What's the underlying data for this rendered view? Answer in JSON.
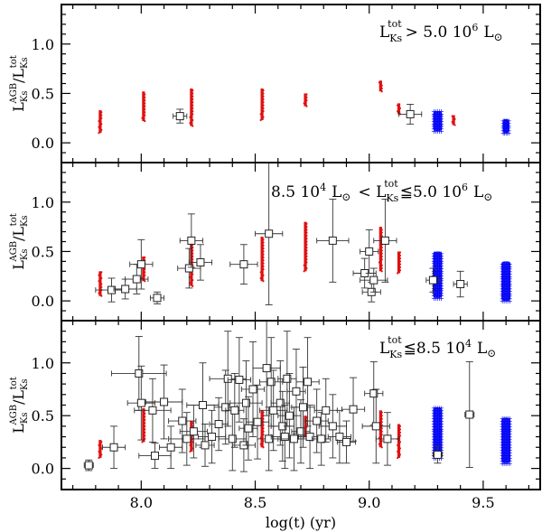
{
  "chart_data": {
    "type": "scatter",
    "xlabel": "log(t) (yr)",
    "xlim": [
      7.65,
      9.75
    ],
    "x_ticks": [
      8.0,
      8.5,
      9.0,
      9.5
    ],
    "x_tick_labels": [
      "8.0",
      "8.5",
      "9.0",
      "9.5"
    ],
    "panels": [
      {
        "id": "top",
        "label_prefix": "L",
        "label_sub": "K",
        "label_sub2": "s",
        "label_sup": "tot",
        "label_relation": "> 5.0  10",
        "label_exp": "6",
        "label_unit": "L",
        "label_unit_sym": "⊙",
        "ylabel": "L_Ks^AGB / L_Ks^tot",
        "ylim": [
          -0.2,
          1.4
        ],
        "y_ticks": [
          0.0,
          0.5,
          1.0
        ],
        "y_tick_labels": [
          "0.0",
          "0.5",
          "1.0"
        ],
        "observed": [
          {
            "x": 8.17,
            "y": 0.27,
            "xerr": 0.03,
            "yerr": 0.07
          },
          {
            "x": 9.18,
            "y": 0.29,
            "xerr": 0.05,
            "yerr": 0.1
          }
        ],
        "model_red": [
          {
            "x": 7.82,
            "y0": 0.1,
            "y1": 0.33
          },
          {
            "x": 8.01,
            "y0": 0.22,
            "y1": 0.52
          },
          {
            "x": 8.22,
            "y0": 0.17,
            "y1": 0.55
          },
          {
            "x": 8.53,
            "y0": 0.23,
            "y1": 0.55
          },
          {
            "x": 8.72,
            "y0": 0.37,
            "y1": 0.5
          },
          {
            "x": 9.05,
            "y0": 0.52,
            "y1": 0.63
          },
          {
            "x": 9.13,
            "y0": 0.29,
            "y1": 0.4
          },
          {
            "x": 9.37,
            "y0": 0.18,
            "y1": 0.28
          }
        ],
        "model_blue": [
          {
            "x": 9.3,
            "y0": 0.12,
            "y1": 0.32,
            "w": 0.04
          },
          {
            "x": 9.6,
            "y0": 0.1,
            "y1": 0.24,
            "w": 0.03
          }
        ]
      },
      {
        "id": "middle",
        "label_relation_left": "8.5  10",
        "label_exp_left": "4",
        "label_prefix": "L",
        "label_sub": "K",
        "label_sub2": "s",
        "label_sup": "tot",
        "label_relation": "< ",
        "label_rel2": "≦5.0  10",
        "label_exp": "6",
        "label_unit": "L",
        "label_unit_sym": "⊙",
        "ylabel": "L_Ks^AGB / L_Ks^tot",
        "ylim": [
          -0.2,
          1.4
        ],
        "y_ticks": [
          0.0,
          0.5,
          1.0
        ],
        "y_tick_labels": [
          "0.0",
          "0.5",
          "1.0"
        ],
        "observed": [
          {
            "x": 7.87,
            "y": 0.11,
            "xerr": 0.07,
            "yerr": 0.12
          },
          {
            "x": 7.93,
            "y": 0.12,
            "xerr": 0.05,
            "yerr": 0.1
          },
          {
            "x": 7.98,
            "y": 0.22,
            "xerr": 0.05,
            "yerr": 0.15
          },
          {
            "x": 8.0,
            "y": 0.37,
            "xerr": 0.05,
            "yerr": 0.25
          },
          {
            "x": 8.07,
            "y": 0.03,
            "xerr": 0.03,
            "yerr": 0.06
          },
          {
            "x": 8.21,
            "y": 0.33,
            "xerr": 0.05,
            "yerr": 0.2
          },
          {
            "x": 8.22,
            "y": 0.61,
            "xerr": 0.05,
            "yerr": 0.27
          },
          {
            "x": 8.26,
            "y": 0.39,
            "xerr": 0.05,
            "yerr": 0.18
          },
          {
            "x": 8.45,
            "y": 0.37,
            "xerr": 0.06,
            "yerr": 0.2
          },
          {
            "x": 8.56,
            "y": 0.68,
            "xerr": 0.06,
            "yerr": 0.72
          },
          {
            "x": 8.84,
            "y": 0.61,
            "xerr": 0.07,
            "yerr": 0.42
          },
          {
            "x": 8.98,
            "y": 0.28,
            "xerr": 0.05,
            "yerr": 0.15
          },
          {
            "x": 9.0,
            "y": 0.5,
            "xerr": 0.04,
            "yerr": 0.22
          },
          {
            "x": 9.01,
            "y": 0.09,
            "xerr": 0.04,
            "yerr": 0.1
          },
          {
            "x": 9.02,
            "y": 0.21,
            "xerr": 0.06,
            "yerr": 0.12
          },
          {
            "x": 9.07,
            "y": 0.61,
            "xerr": 0.05,
            "yerr": 0.42
          },
          {
            "x": 9.28,
            "y": 0.21,
            "xerr": 0.03,
            "yerr": 0.12
          },
          {
            "x": 9.4,
            "y": 0.17,
            "xerr": 0.03,
            "yerr": 0.13
          }
        ],
        "model_red": [
          {
            "x": 7.82,
            "y0": 0.05,
            "y1": 0.3
          },
          {
            "x": 8.01,
            "y0": 0.2,
            "y1": 0.45
          },
          {
            "x": 8.22,
            "y0": 0.15,
            "y1": 0.6
          },
          {
            "x": 8.53,
            "y0": 0.2,
            "y1": 0.65
          },
          {
            "x": 8.72,
            "y0": 0.3,
            "y1": 0.8
          },
          {
            "x": 9.05,
            "y0": 0.3,
            "y1": 0.75
          },
          {
            "x": 9.13,
            "y0": 0.28,
            "y1": 0.5
          }
        ],
        "model_blue": [
          {
            "x": 9.3,
            "y0": 0.03,
            "y1": 0.5,
            "w": 0.04
          },
          {
            "x": 9.6,
            "y0": 0.0,
            "y1": 0.4,
            "w": 0.04
          }
        ]
      },
      {
        "id": "bottom",
        "label_prefix": "L",
        "label_sub": "K",
        "label_sub2": "s",
        "label_sup": "tot",
        "label_relation": "≦8.5  10",
        "label_exp": "4",
        "label_unit": "L",
        "label_unit_sym": "⊙",
        "ylabel": "L_Ks^AGB / L_Ks^tot",
        "ylim": [
          -0.2,
          1.4
        ],
        "y_ticks": [
          0.0,
          0.5,
          1.0
        ],
        "y_tick_labels": [
          "0.0",
          "0.5",
          "1.0"
        ],
        "observed": [
          {
            "x": 7.77,
            "y": 0.03,
            "xerr": 0.02,
            "yerr": 0.05
          },
          {
            "x": 7.88,
            "y": 0.2,
            "xerr": 0.05,
            "yerr": 0.2
          },
          {
            "x": 7.99,
            "y": 0.9,
            "xerr": 0.12,
            "yerr": 0.35
          },
          {
            "x": 8.0,
            "y": 0.62,
            "xerr": 0.06,
            "yerr": 0.35
          },
          {
            "x": 8.05,
            "y": 0.55,
            "xerr": 0.08,
            "yerr": 0.3
          },
          {
            "x": 8.06,
            "y": 0.12,
            "xerr": 0.07,
            "yerr": 0.12
          },
          {
            "x": 8.1,
            "y": 0.63,
            "xerr": 0.08,
            "yerr": 0.35
          },
          {
            "x": 8.13,
            "y": 0.2,
            "xerr": 0.05,
            "yerr": 0.2
          },
          {
            "x": 8.18,
            "y": 0.45,
            "xerr": 0.06,
            "yerr": 0.3
          },
          {
            "x": 8.2,
            "y": 0.28,
            "xerr": 0.08,
            "yerr": 0.25
          },
          {
            "x": 8.23,
            "y": 0.35,
            "xerr": 0.06,
            "yerr": 0.25
          },
          {
            "x": 8.27,
            "y": 0.6,
            "xerr": 0.07,
            "yerr": 0.4
          },
          {
            "x": 8.28,
            "y": 0.22,
            "xerr": 0.04,
            "yerr": 0.2
          },
          {
            "x": 8.31,
            "y": 0.3,
            "xerr": 0.06,
            "yerr": 0.25
          },
          {
            "x": 8.34,
            "y": 0.42,
            "xerr": 0.04,
            "yerr": 0.25
          },
          {
            "x": 8.37,
            "y": 0.58,
            "xerr": 0.05,
            "yerr": 0.35
          },
          {
            "x": 8.38,
            "y": 0.85,
            "xerr": 0.08,
            "yerr": 0.45
          },
          {
            "x": 8.4,
            "y": 0.28,
            "xerr": 0.06,
            "yerr": 0.3
          },
          {
            "x": 8.41,
            "y": 0.55,
            "xerr": 0.04,
            "yerr": 0.35
          },
          {
            "x": 8.43,
            "y": 0.84,
            "xerr": 0.05,
            "yerr": 0.4
          },
          {
            "x": 8.45,
            "y": 0.22,
            "xerr": 0.05,
            "yerr": 0.25
          },
          {
            "x": 8.46,
            "y": 0.62,
            "xerr": 0.07,
            "yerr": 0.4
          },
          {
            "x": 8.47,
            "y": 0.38,
            "xerr": 0.04,
            "yerr": 0.3
          },
          {
            "x": 8.49,
            "y": 0.75,
            "xerr": 0.05,
            "yerr": 0.45
          },
          {
            "x": 8.51,
            "y": 0.44,
            "xerr": 0.05,
            "yerr": 0.35
          },
          {
            "x": 8.55,
            "y": 0.95,
            "xerr": 0.06,
            "yerr": 0.45
          },
          {
            "x": 8.56,
            "y": 0.28,
            "xerr": 0.05,
            "yerr": 0.3
          },
          {
            "x": 8.57,
            "y": 0.82,
            "xerr": 0.05,
            "yerr": 0.42
          },
          {
            "x": 8.58,
            "y": 0.55,
            "xerr": 0.06,
            "yerr": 0.38
          },
          {
            "x": 8.61,
            "y": 0.62,
            "xerr": 0.04,
            "yerr": 0.4
          },
          {
            "x": 8.62,
            "y": 0.4,
            "xerr": 0.05,
            "yerr": 0.33
          },
          {
            "x": 8.63,
            "y": 0.3,
            "xerr": 0.06,
            "yerr": 0.3
          },
          {
            "x": 8.64,
            "y": 0.85,
            "xerr": 0.04,
            "yerr": 0.45
          },
          {
            "x": 8.65,
            "y": 0.5,
            "xerr": 0.05,
            "yerr": 0.4
          },
          {
            "x": 8.67,
            "y": 0.28,
            "xerr": 0.07,
            "yerr": 0.3
          },
          {
            "x": 8.68,
            "y": 0.73,
            "xerr": 0.04,
            "yerr": 0.4
          },
          {
            "x": 8.7,
            "y": 0.35,
            "xerr": 0.04,
            "yerr": 0.3
          },
          {
            "x": 8.71,
            "y": 0.58,
            "xerr": 0.05,
            "yerr": 0.38
          },
          {
            "x": 8.73,
            "y": 0.82,
            "xerr": 0.05,
            "yerr": 0.42
          },
          {
            "x": 8.74,
            "y": 0.3,
            "xerr": 0.05,
            "yerr": 0.3
          },
          {
            "x": 8.77,
            "y": 0.45,
            "xerr": 0.05,
            "yerr": 0.3
          },
          {
            "x": 8.79,
            "y": 0.28,
            "xerr": 0.04,
            "yerr": 0.25
          },
          {
            "x": 8.81,
            "y": 0.55,
            "xerr": 0.05,
            "yerr": 0.3
          },
          {
            "x": 8.84,
            "y": 0.4,
            "xerr": 0.06,
            "yerr": 0.3
          },
          {
            "x": 8.87,
            "y": 0.3,
            "xerr": 0.05,
            "yerr": 0.25
          },
          {
            "x": 8.9,
            "y": 0.25,
            "xerr": 0.04,
            "yerr": 0.2
          },
          {
            "x": 8.93,
            "y": 0.56,
            "xerr": 0.05,
            "yerr": 0.3
          },
          {
            "x": 9.02,
            "y": 0.71,
            "xerr": 0.04,
            "yerr": 0.3
          },
          {
            "x": 9.03,
            "y": 0.4,
            "xerr": 0.06,
            "yerr": 0.35
          },
          {
            "x": 9.08,
            "y": 0.28,
            "xerr": 0.05,
            "yerr": 0.25
          },
          {
            "x": 9.3,
            "y": 0.13,
            "xerr": 0.02,
            "yerr": 0.08
          },
          {
            "x": 9.44,
            "y": 0.51,
            "xerr": 0.02,
            "yerr": 0.5
          }
        ],
        "model_red": [
          {
            "x": 7.82,
            "y0": 0.1,
            "y1": 0.27
          },
          {
            "x": 8.01,
            "y0": 0.25,
            "y1": 0.57
          },
          {
            "x": 8.22,
            "y0": 0.16,
            "y1": 0.45
          },
          {
            "x": 8.53,
            "y0": 0.2,
            "y1": 0.55
          },
          {
            "x": 8.72,
            "y0": 0.3,
            "y1": 0.5
          },
          {
            "x": 9.05,
            "y0": 0.2,
            "y1": 0.55
          },
          {
            "x": 9.13,
            "y0": 0.1,
            "y1": 0.42
          }
        ],
        "model_blue": [
          {
            "x": 9.3,
            "y0": 0.1,
            "y1": 0.58,
            "w": 0.04
          },
          {
            "x": 9.6,
            "y0": 0.05,
            "y1": 0.48,
            "w": 0.04
          }
        ]
      }
    ]
  }
}
